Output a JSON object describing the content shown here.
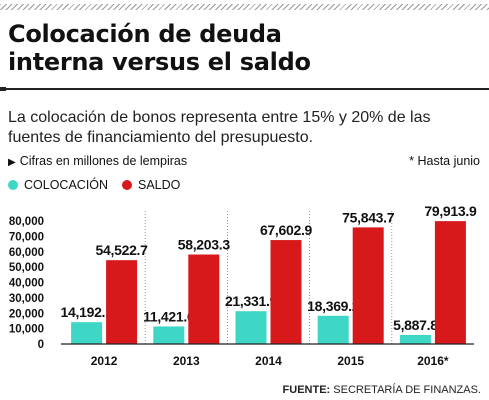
{
  "header": {
    "title_line1": "Colocación de deuda",
    "title_line2": "interna versus el saldo",
    "subtitle": "La colocación de bonos representa entre 15% y 20% de las fuentes de financiamiento del presupuesto."
  },
  "notes": {
    "units": "Cifras en millones de lempiras",
    "footnote": "* Hasta junio"
  },
  "legend": {
    "colocacion": "COLOCACIÓN",
    "saldo": "SALDO"
  },
  "source": {
    "label": "FUENTE:",
    "text": "SECRETARÍA DE FINANZAS."
  },
  "colors": {
    "colocacion": "#3ed6c4",
    "saldo": "#d7191c"
  },
  "chart_data": {
    "type": "bar",
    "categories": [
      "2012",
      "2013",
      "2014",
      "2015",
      "2016*"
    ],
    "series": [
      {
        "name": "COLOCACIÓN",
        "values": [
          14192.1,
          11421.6,
          21331.9,
          18369.2,
          5887.8
        ]
      },
      {
        "name": "SALDO",
        "values": [
          54522.7,
          58203.3,
          67602.9,
          75843.7,
          79913.9
        ]
      }
    ],
    "data_labels": {
      "COLOCACIÓN": [
        "14,192.1",
        "11,421.6",
        "21,331.9",
        "18,369.2",
        "5,887.8"
      ],
      "SALDO": [
        "54,522.7",
        "58,203.3",
        "67,602.9",
        "75,843.7",
        "79,913.9"
      ]
    },
    "y_ticks": [
      0,
      10000,
      20000,
      30000,
      40000,
      50000,
      60000,
      70000,
      80000
    ],
    "y_tick_labels": [
      "0",
      "10,000",
      "20,000",
      "30,000",
      "40,000",
      "50,000",
      "60,000",
      "70,000",
      "80,000"
    ],
    "ylim": [
      0,
      80000
    ],
    "legend_position": "top-left",
    "grid": false
  }
}
